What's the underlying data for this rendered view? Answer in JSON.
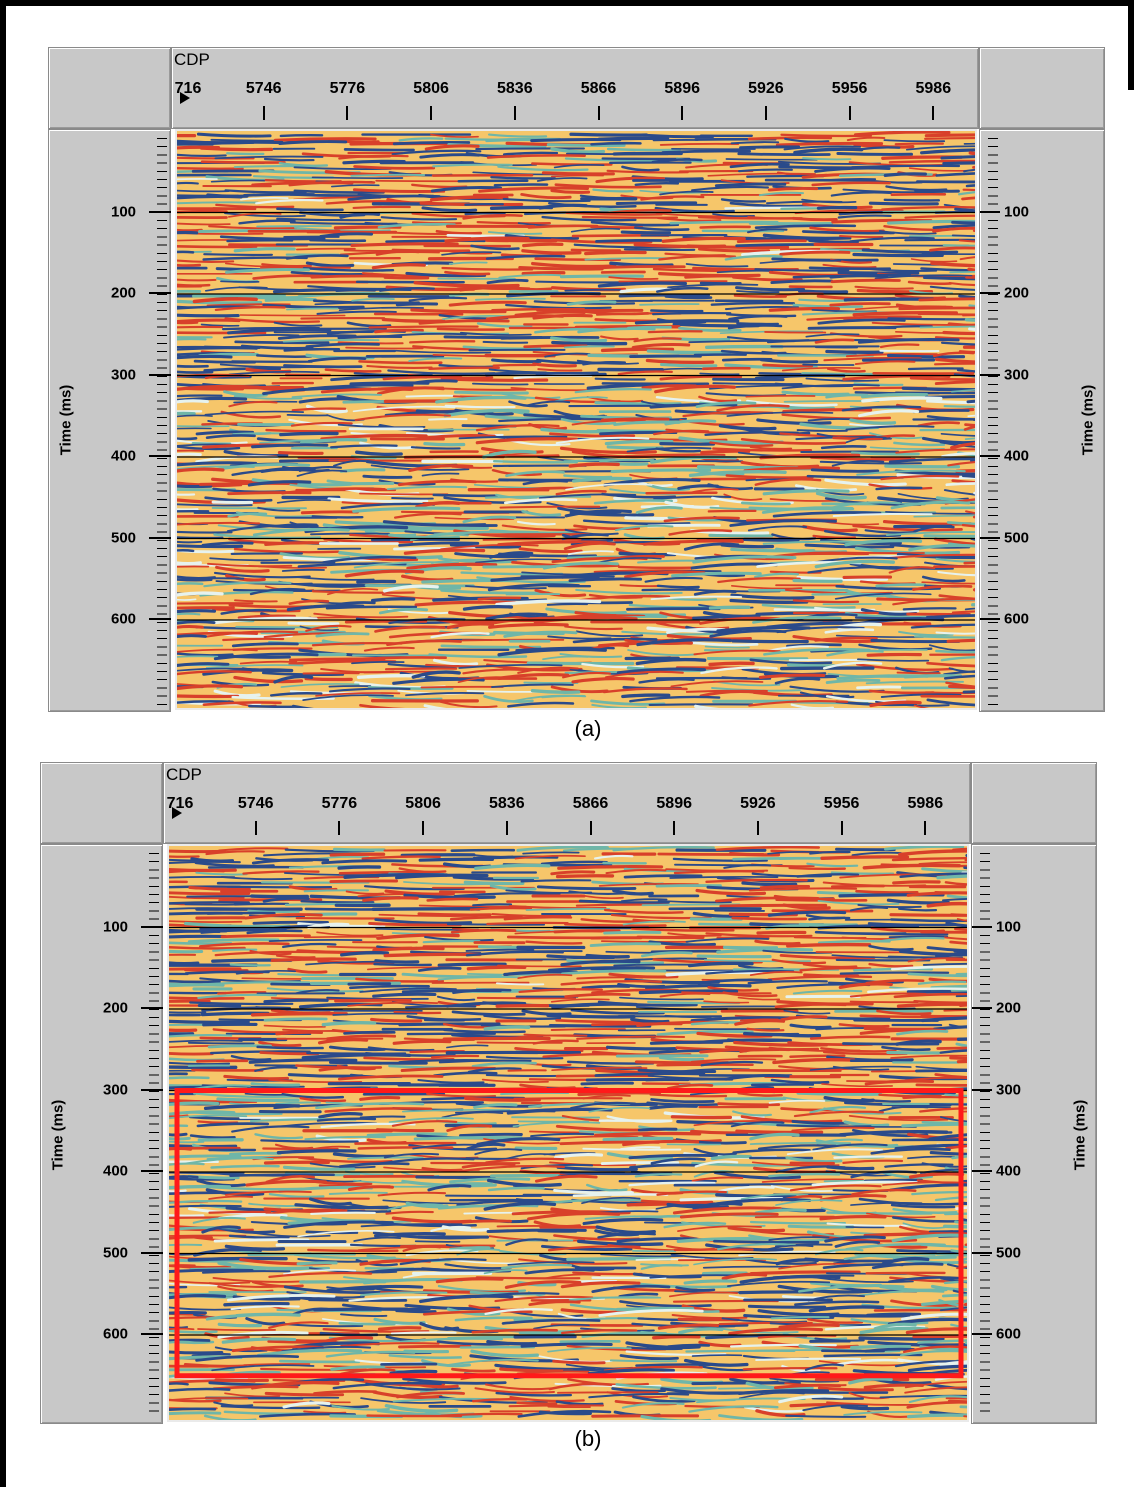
{
  "figure": {
    "panels": [
      {
        "caption": "(a)",
        "x_axis_title": "CDP",
        "x_ticks": [
          "716",
          "5746",
          "5776",
          "5806",
          "5836",
          "5866",
          "5896",
          "5926",
          "5956",
          "5986"
        ],
        "y_ticks": [
          "100",
          "200",
          "300",
          "400",
          "500",
          "600"
        ],
        "y_label_left": "Time (ms)",
        "y_label_right": "Time (ms)",
        "highlight_box": null
      },
      {
        "caption": "(b)",
        "x_axis_title": "CDP",
        "x_ticks": [
          "716",
          "5746",
          "5776",
          "5806",
          "5836",
          "5866",
          "5896",
          "5926",
          "5956",
          "5986"
        ],
        "y_ticks": [
          "100",
          "200",
          "300",
          "400",
          "500",
          "600"
        ],
        "y_label_left": "Time (ms)",
        "y_label_right": "Time (ms)",
        "highlight_box": {
          "time_from_ms": 300,
          "time_to_ms": 650,
          "color": "#ff1a1a"
        }
      }
    ],
    "colors": {
      "panel_gray": "#c8c8c8",
      "seismic_background": "#f6c66a",
      "seismic_positive": "#d8402a",
      "seismic_negative": "#2a4a8a",
      "seismic_light": "#e6f2ee",
      "seismic_mid": "#6fb6a8",
      "grid_line": "#000000"
    }
  }
}
